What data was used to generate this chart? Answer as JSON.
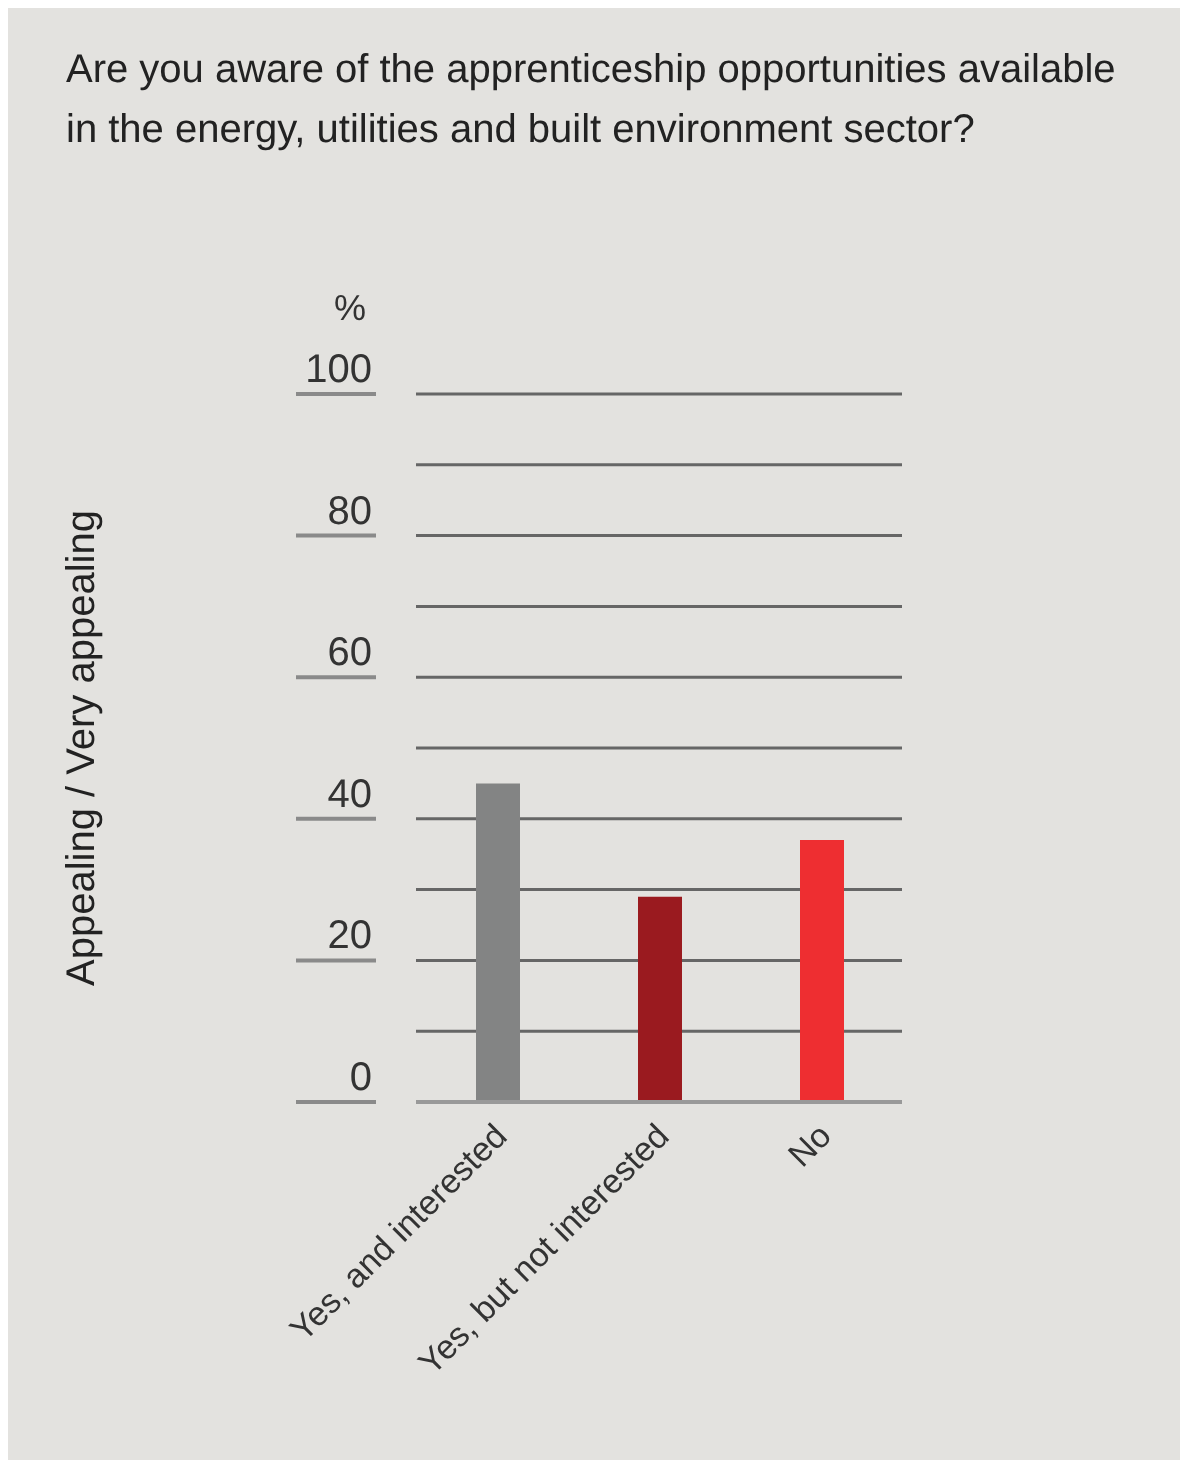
{
  "chart_data": {
    "type": "bar",
    "title": "Are you aware of the apprenticeship opportunities available in the energy, utilities and built environment sector?",
    "ylabel": "Appealing / Very appealing",
    "annotations": [
      "%"
    ],
    "categories": [
      "Yes, and interested",
      "Yes, but not interested",
      "No"
    ],
    "values": [
      45,
      29,
      37
    ],
    "colors": [
      "#838484",
      "#9a1a1f",
      "#ee2e31"
    ],
    "ylim": [
      0,
      100
    ],
    "yticks": [
      0,
      {
        "value": 10,
        "label": null
      },
      20,
      {
        "value": 30,
        "label": null
      },
      40,
      {
        "value": 50,
        "label": null
      },
      60,
      {
        "value": 70,
        "label": null
      },
      80,
      {
        "value": 90,
        "label": null
      },
      100
    ],
    "grid": "y"
  }
}
